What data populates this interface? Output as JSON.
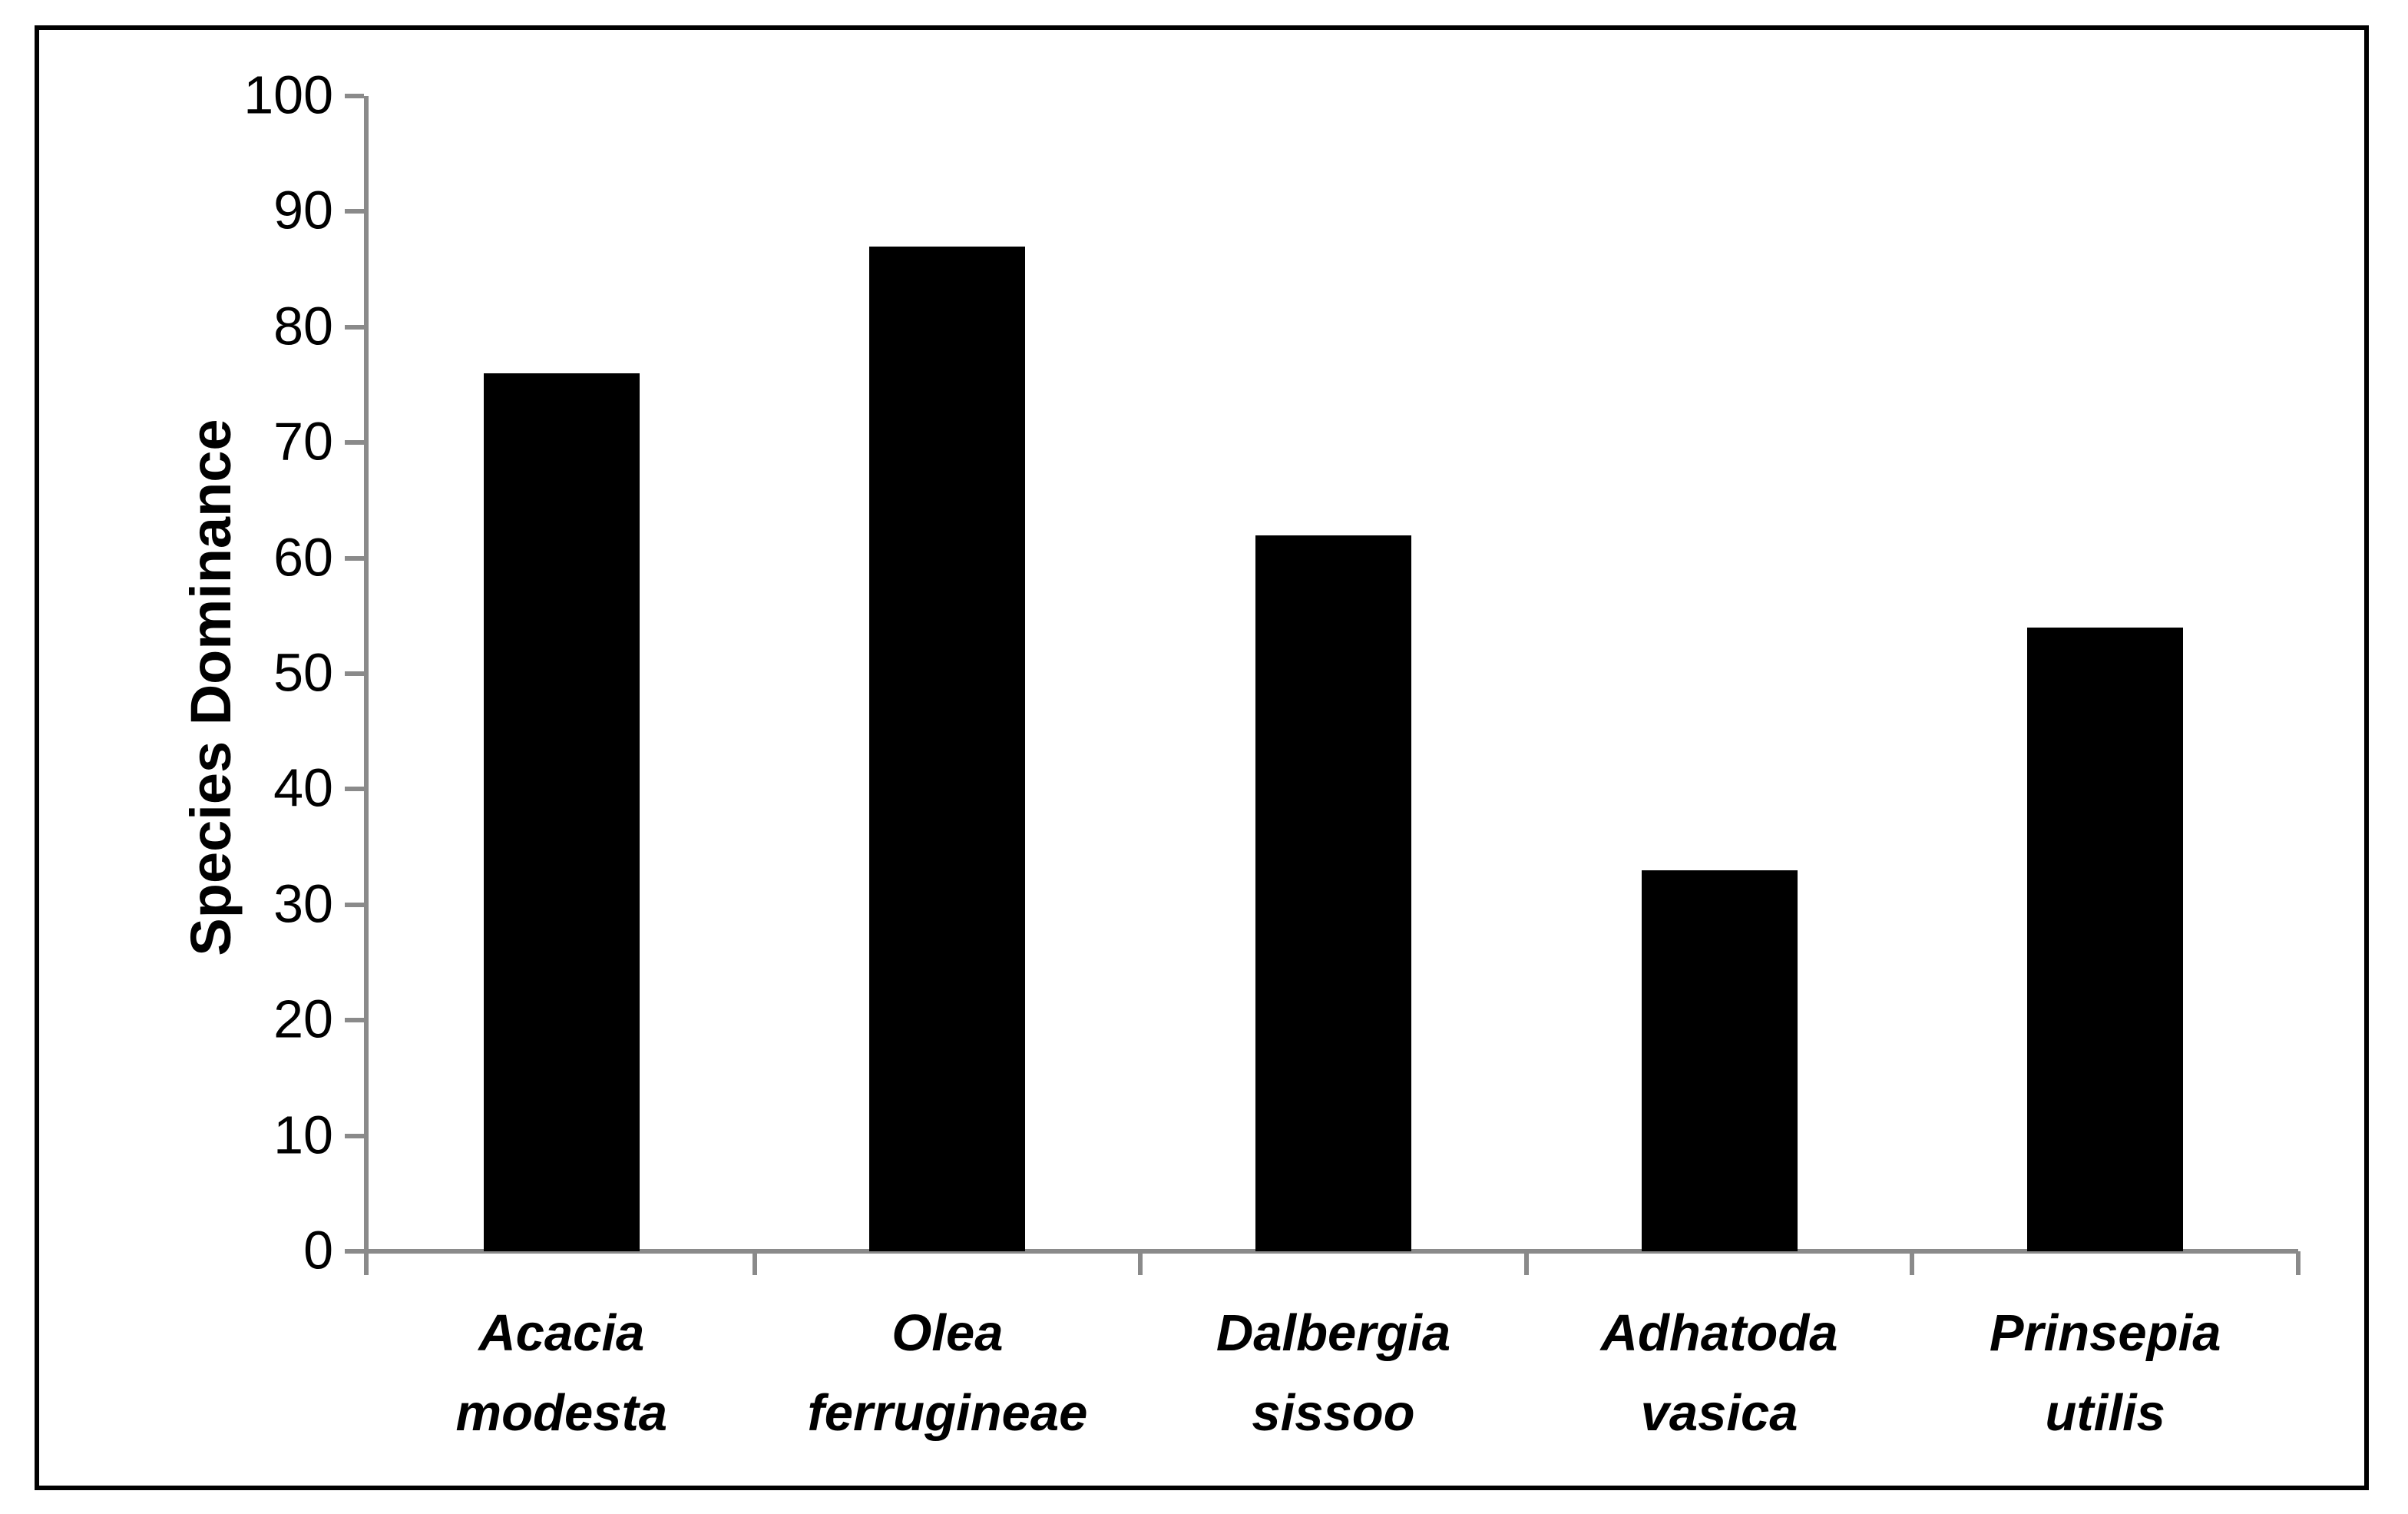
{
  "chart_data": {
    "type": "bar",
    "title": "",
    "xlabel": "",
    "ylabel": "Species Dominance",
    "categories": [
      "Acacia modesta",
      "Olea ferrugineae",
      "Dalbergia sissoo",
      "Adhatoda vasica",
      "Prinsepia utilis"
    ],
    "values": [
      76,
      87,
      62,
      33,
      54
    ],
    "ylim": [
      0,
      100
    ],
    "ytick_step": 10,
    "ytick_labels": [
      "0",
      "10",
      "20",
      "30",
      "40",
      "50",
      "60",
      "70",
      "80",
      "90",
      "100"
    ],
    "legend_position": "none",
    "grid": false,
    "bar_color": "#000000",
    "axis_color": "#8a8a8a",
    "text_color": "#000000",
    "background_color": "#ffffff"
  }
}
